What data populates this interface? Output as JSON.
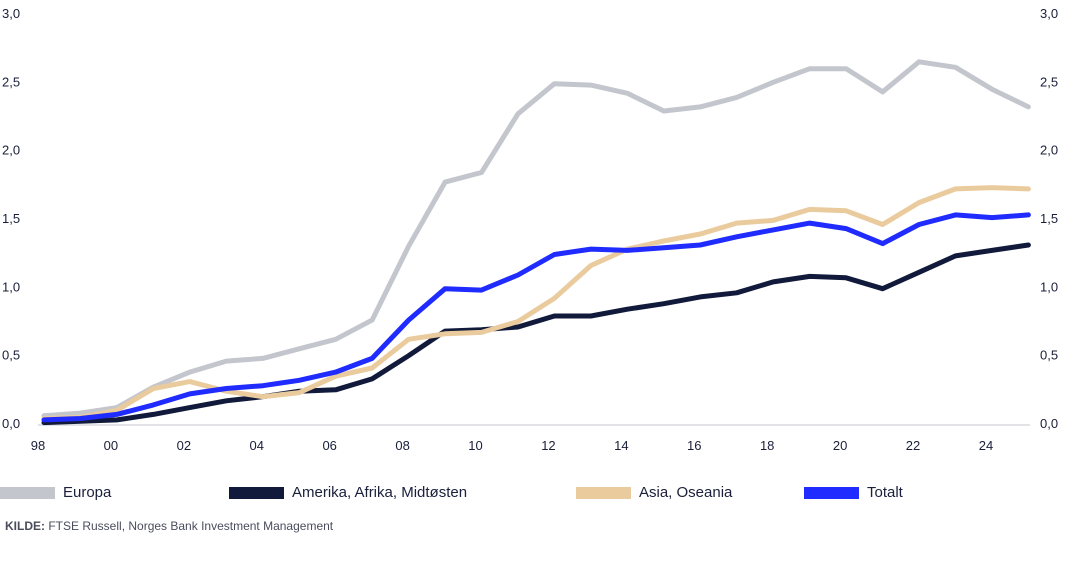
{
  "chart_data": {
    "type": "line",
    "title": "",
    "xlabel": "",
    "ylabel": "",
    "x": [
      1998,
      1999,
      2000,
      2001,
      2002,
      2003,
      2004,
      2005,
      2006,
      2007,
      2008,
      2009,
      2010,
      2011,
      2012,
      2013,
      2014,
      2015,
      2016,
      2017,
      2018,
      2019,
      2020,
      2021,
      2022,
      2023,
      2024,
      2025
    ],
    "x_tick_labels": [
      "98",
      "00",
      "02",
      "04",
      "06",
      "08",
      "10",
      "12",
      "14",
      "16",
      "18",
      "20",
      "22",
      "24"
    ],
    "x_tick_years": [
      1998,
      2000,
      2002,
      2004,
      2006,
      2008,
      2010,
      2012,
      2014,
      2016,
      2018,
      2020,
      2022,
      2024
    ],
    "y_tick_labels": [
      "0,0",
      "0,5",
      "1,0",
      "1,5",
      "2,0",
      "2,5",
      "3,0"
    ],
    "ylim": [
      0,
      3
    ],
    "grid": false,
    "legend_placement": "bottom",
    "series": [
      {
        "name": "Europa",
        "color": "#c3c6cc",
        "values": [
          0.06,
          0.08,
          0.12,
          0.27,
          0.38,
          0.46,
          0.48,
          0.55,
          0.62,
          0.76,
          1.3,
          1.77,
          1.84,
          2.27,
          2.49,
          2.48,
          2.42,
          2.29,
          2.32,
          2.39,
          2.5,
          2.6,
          2.6,
          2.43,
          2.65,
          2.61,
          2.45,
          2.32
        ]
      },
      {
        "name": "Amerika, Afrika, Midtøsten",
        "color": "#111a3a",
        "values": [
          0.01,
          0.02,
          0.03,
          0.07,
          0.12,
          0.17,
          0.2,
          0.24,
          0.25,
          0.33,
          0.5,
          0.68,
          0.69,
          0.71,
          0.79,
          0.79,
          0.84,
          0.88,
          0.93,
          0.96,
          1.04,
          1.08,
          1.07,
          0.99,
          1.11,
          1.23,
          1.27,
          1.31
        ]
      },
      {
        "name": "Asia, Oseania",
        "color": "#eacb9d",
        "values": [
          0.04,
          0.05,
          0.1,
          0.26,
          0.31,
          0.24,
          0.2,
          0.23,
          0.35,
          0.41,
          0.62,
          0.66,
          0.67,
          0.75,
          0.92,
          1.16,
          1.28,
          1.34,
          1.39,
          1.47,
          1.49,
          1.57,
          1.56,
          1.46,
          1.62,
          1.72,
          1.73,
          1.72
        ]
      },
      {
        "name": "Totalt",
        "color": "#1f2bff",
        "values": [
          0.03,
          0.04,
          0.07,
          0.14,
          0.22,
          0.26,
          0.28,
          0.32,
          0.38,
          0.48,
          0.76,
          0.99,
          0.98,
          1.09,
          1.24,
          1.28,
          1.27,
          1.29,
          1.31,
          1.37,
          1.42,
          1.47,
          1.43,
          1.32,
          1.46,
          1.53,
          1.51,
          1.53
        ]
      }
    ]
  },
  "source": {
    "label": "KILDE:",
    "text": "FTSE Russell, Norges Bank Investment Management"
  }
}
